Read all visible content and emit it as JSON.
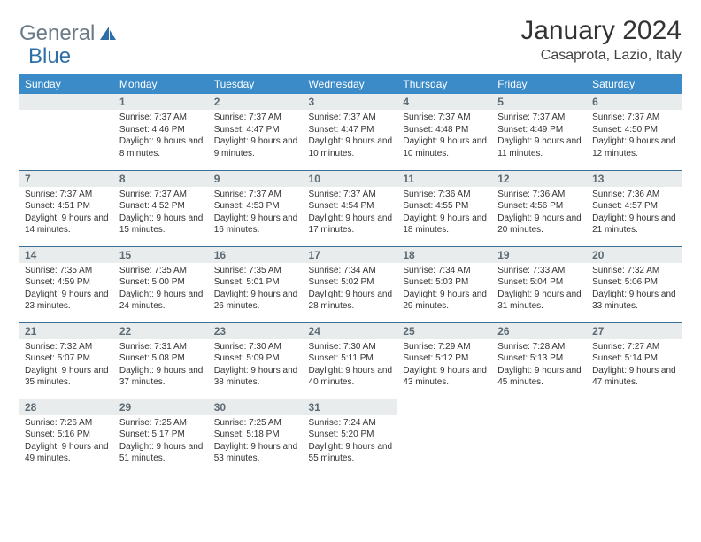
{
  "logo": {
    "part1": "General",
    "part2": "Blue"
  },
  "title": "January 2024",
  "location": "Casaprota, Lazio, Italy",
  "colors": {
    "header_bg": "#3b8bc9",
    "header_text": "#ffffff",
    "daynum_bg": "#e9eced",
    "daynum_text": "#5c6a73",
    "row_border": "#3b6f97",
    "logo_gray": "#6b7a87",
    "logo_blue": "#2f6fa8"
  },
  "weekdays": [
    "Sunday",
    "Monday",
    "Tuesday",
    "Wednesday",
    "Thursday",
    "Friday",
    "Saturday"
  ],
  "rows": [
    [
      {
        "day": null
      },
      {
        "day": 1,
        "sunrise": "7:37 AM",
        "sunset": "4:46 PM",
        "daylight": "9 hours and 8 minutes."
      },
      {
        "day": 2,
        "sunrise": "7:37 AM",
        "sunset": "4:47 PM",
        "daylight": "9 hours and 9 minutes."
      },
      {
        "day": 3,
        "sunrise": "7:37 AM",
        "sunset": "4:47 PM",
        "daylight": "9 hours and 10 minutes."
      },
      {
        "day": 4,
        "sunrise": "7:37 AM",
        "sunset": "4:48 PM",
        "daylight": "9 hours and 10 minutes."
      },
      {
        "day": 5,
        "sunrise": "7:37 AM",
        "sunset": "4:49 PM",
        "daylight": "9 hours and 11 minutes."
      },
      {
        "day": 6,
        "sunrise": "7:37 AM",
        "sunset": "4:50 PM",
        "daylight": "9 hours and 12 minutes."
      }
    ],
    [
      {
        "day": 7,
        "sunrise": "7:37 AM",
        "sunset": "4:51 PM",
        "daylight": "9 hours and 14 minutes."
      },
      {
        "day": 8,
        "sunrise": "7:37 AM",
        "sunset": "4:52 PM",
        "daylight": "9 hours and 15 minutes."
      },
      {
        "day": 9,
        "sunrise": "7:37 AM",
        "sunset": "4:53 PM",
        "daylight": "9 hours and 16 minutes."
      },
      {
        "day": 10,
        "sunrise": "7:37 AM",
        "sunset": "4:54 PM",
        "daylight": "9 hours and 17 minutes."
      },
      {
        "day": 11,
        "sunrise": "7:36 AM",
        "sunset": "4:55 PM",
        "daylight": "9 hours and 18 minutes."
      },
      {
        "day": 12,
        "sunrise": "7:36 AM",
        "sunset": "4:56 PM",
        "daylight": "9 hours and 20 minutes."
      },
      {
        "day": 13,
        "sunrise": "7:36 AM",
        "sunset": "4:57 PM",
        "daylight": "9 hours and 21 minutes."
      }
    ],
    [
      {
        "day": 14,
        "sunrise": "7:35 AM",
        "sunset": "4:59 PM",
        "daylight": "9 hours and 23 minutes."
      },
      {
        "day": 15,
        "sunrise": "7:35 AM",
        "sunset": "5:00 PM",
        "daylight": "9 hours and 24 minutes."
      },
      {
        "day": 16,
        "sunrise": "7:35 AM",
        "sunset": "5:01 PM",
        "daylight": "9 hours and 26 minutes."
      },
      {
        "day": 17,
        "sunrise": "7:34 AM",
        "sunset": "5:02 PM",
        "daylight": "9 hours and 28 minutes."
      },
      {
        "day": 18,
        "sunrise": "7:34 AM",
        "sunset": "5:03 PM",
        "daylight": "9 hours and 29 minutes."
      },
      {
        "day": 19,
        "sunrise": "7:33 AM",
        "sunset": "5:04 PM",
        "daylight": "9 hours and 31 minutes."
      },
      {
        "day": 20,
        "sunrise": "7:32 AM",
        "sunset": "5:06 PM",
        "daylight": "9 hours and 33 minutes."
      }
    ],
    [
      {
        "day": 21,
        "sunrise": "7:32 AM",
        "sunset": "5:07 PM",
        "daylight": "9 hours and 35 minutes."
      },
      {
        "day": 22,
        "sunrise": "7:31 AM",
        "sunset": "5:08 PM",
        "daylight": "9 hours and 37 minutes."
      },
      {
        "day": 23,
        "sunrise": "7:30 AM",
        "sunset": "5:09 PM",
        "daylight": "9 hours and 38 minutes."
      },
      {
        "day": 24,
        "sunrise": "7:30 AM",
        "sunset": "5:11 PM",
        "daylight": "9 hours and 40 minutes."
      },
      {
        "day": 25,
        "sunrise": "7:29 AM",
        "sunset": "5:12 PM",
        "daylight": "9 hours and 43 minutes."
      },
      {
        "day": 26,
        "sunrise": "7:28 AM",
        "sunset": "5:13 PM",
        "daylight": "9 hours and 45 minutes."
      },
      {
        "day": 27,
        "sunrise": "7:27 AM",
        "sunset": "5:14 PM",
        "daylight": "9 hours and 47 minutes."
      }
    ],
    [
      {
        "day": 28,
        "sunrise": "7:26 AM",
        "sunset": "5:16 PM",
        "daylight": "9 hours and 49 minutes."
      },
      {
        "day": 29,
        "sunrise": "7:25 AM",
        "sunset": "5:17 PM",
        "daylight": "9 hours and 51 minutes."
      },
      {
        "day": 30,
        "sunrise": "7:25 AM",
        "sunset": "5:18 PM",
        "daylight": "9 hours and 53 minutes."
      },
      {
        "day": 31,
        "sunrise": "7:24 AM",
        "sunset": "5:20 PM",
        "daylight": "9 hours and 55 minutes."
      },
      {
        "day": null
      },
      {
        "day": null
      },
      {
        "day": null
      }
    ]
  ]
}
